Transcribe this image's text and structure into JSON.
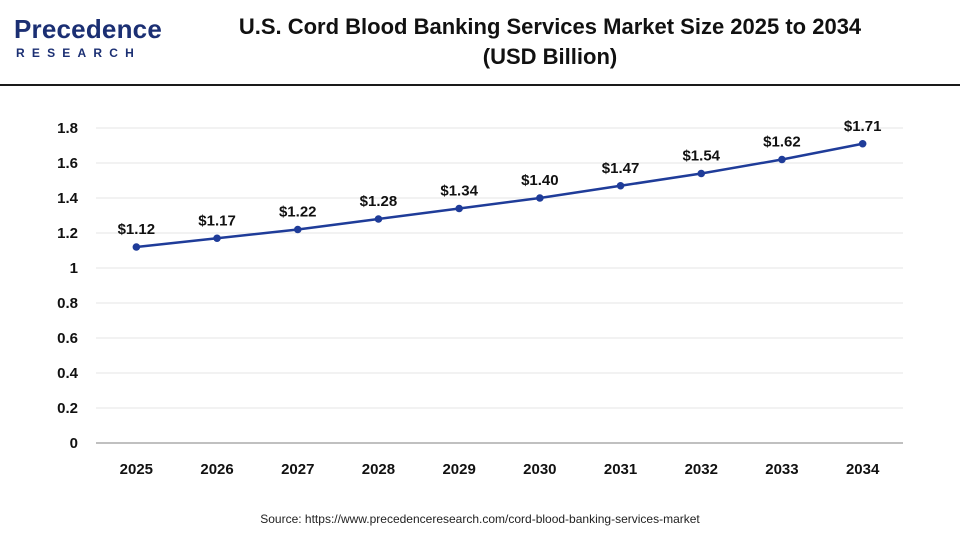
{
  "brand": {
    "name": "Precedence",
    "sub": "RESEARCH",
    "color": "#1b2f73",
    "accent": "#7b8fc9"
  },
  "header": {
    "title_line1": "U.S. Cord Blood Banking Services Market Size 2025 to 2034",
    "title_line2": "(USD Billion)"
  },
  "source": "Source: https://www.precedenceresearch.com/cord-blood-banking-services-market",
  "chart_data": {
    "type": "line",
    "categories": [
      "2025",
      "2026",
      "2027",
      "2028",
      "2029",
      "2030",
      "2031",
      "2032",
      "2033",
      "2034"
    ],
    "series": [
      {
        "values": [
          1.12,
          1.17,
          1.22,
          1.28,
          1.34,
          1.4,
          1.47,
          1.54,
          1.62,
          1.71
        ],
        "labels": [
          "$1.12",
          "$1.17",
          "$1.22",
          "$1.28",
          "$1.34",
          "$1.40",
          "$1.47",
          "$1.54",
          "$1.62",
          "$1.71"
        ],
        "color": "#1f3c99"
      }
    ],
    "yticks": [
      "0",
      "0.2",
      "0.4",
      "0.6",
      "0.8",
      "1",
      "1.2",
      "1.4",
      "1.6",
      "1.8"
    ],
    "ylim": [
      0,
      1.8
    ],
    "grid": true,
    "legend": "none",
    "title": "U.S. Cord Blood Banking Services Market Size 2025 to 2034 (USD Billion)",
    "xlabel": "",
    "ylabel": ""
  }
}
